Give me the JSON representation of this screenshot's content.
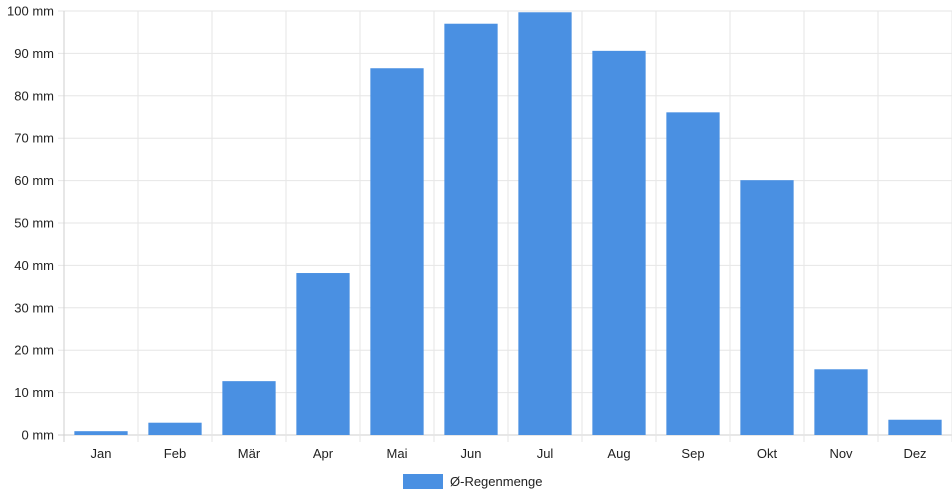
{
  "chart_data": {
    "type": "bar",
    "categories": [
      "Jan",
      "Feb",
      "Mär",
      "Apr",
      "Mai",
      "Jun",
      "Jul",
      "Aug",
      "Sep",
      "Okt",
      "Nov",
      "Dez"
    ],
    "series": [
      {
        "name": "Ø-Regenmenge",
        "values": [
          0.9,
          2.9,
          12.7,
          38.2,
          86.5,
          97.0,
          99.7,
          90.6,
          76.1,
          60.1,
          15.5,
          3.6
        ]
      }
    ],
    "ylim": [
      0,
      100
    ],
    "yticks": [
      0,
      10,
      20,
      30,
      40,
      50,
      60,
      70,
      80,
      90,
      100
    ],
    "y_tick_labels": [
      "0 mm",
      "10 mm",
      "20 mm",
      "30 mm",
      "40 mm",
      "50 mm",
      "60 mm",
      "70 mm",
      "80 mm",
      "90 mm",
      "100 mm"
    ],
    "grid": true,
    "legend_position": "bottom",
    "colors": {
      "bar": "#4a90e2",
      "grid": "#e6e6e6",
      "axis": "#cfcfcf"
    }
  }
}
